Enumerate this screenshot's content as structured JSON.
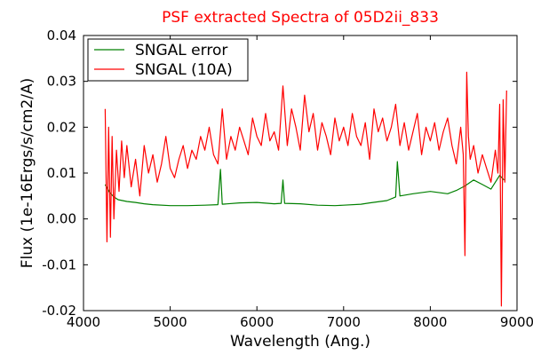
{
  "chart_data": {
    "type": "line",
    "title": "PSF extracted Spectra of 05D2ii_833",
    "xlabel": "Wavelength (Ang.)",
    "ylabel": "Flux (1e-16Ergs/s/cm2/A)",
    "xlim": [
      4000,
      9000
    ],
    "ylim": [
      -0.02,
      0.04
    ],
    "xticks": [
      4000,
      5000,
      6000,
      7000,
      8000,
      9000
    ],
    "xtick_labels": [
      "4000",
      "5000",
      "6000",
      "7000",
      "8000",
      "9000"
    ],
    "yticks": [
      -0.02,
      -0.01,
      0.0,
      0.01,
      0.02,
      0.03,
      0.04
    ],
    "ytick_labels": [
      "-0.02",
      "-0.01",
      "0.00",
      "0.01",
      "0.02",
      "0.03",
      "0.04"
    ],
    "grid": false,
    "legend_position": "top-left",
    "series": [
      {
        "name": "SNGAL error",
        "color": "#008000",
        "x": [
          4250,
          4300,
          4350,
          4400,
          4500,
          4600,
          4700,
          4800,
          5000,
          5200,
          5400,
          5550,
          5580,
          5600,
          5800,
          6000,
          6200,
          6280,
          6300,
          6320,
          6500,
          6700,
          6900,
          7000,
          7200,
          7300,
          7500,
          7600,
          7620,
          7650,
          7800,
          8000,
          8200,
          8300,
          8400,
          8500,
          8600,
          8700,
          8800,
          8850
        ],
        "values": [
          0.0075,
          0.0058,
          0.0048,
          0.0042,
          0.0038,
          0.0036,
          0.0033,
          0.0031,
          0.0029,
          0.0029,
          0.003,
          0.0031,
          0.0108,
          0.0032,
          0.0035,
          0.0036,
          0.0033,
          0.0034,
          0.0085,
          0.0034,
          0.0033,
          0.003,
          0.0029,
          0.003,
          0.0032,
          0.0035,
          0.004,
          0.0048,
          0.0125,
          0.005,
          0.0055,
          0.006,
          0.0055,
          0.0062,
          0.0072,
          0.0085,
          0.0075,
          0.0065,
          0.0095,
          0.0085
        ]
      },
      {
        "name": "SNGAL (10A)",
        "color": "#ff0000",
        "x": [
          4250,
          4270,
          4290,
          4310,
          4330,
          4350,
          4380,
          4410,
          4440,
          4470,
          4500,
          4550,
          4600,
          4650,
          4700,
          4750,
          4800,
          4850,
          4900,
          4950,
          5000,
          5050,
          5100,
          5150,
          5200,
          5250,
          5300,
          5350,
          5400,
          5450,
          5500,
          5550,
          5600,
          5650,
          5700,
          5750,
          5800,
          5850,
          5900,
          5950,
          6000,
          6050,
          6100,
          6150,
          6200,
          6250,
          6300,
          6350,
          6400,
          6450,
          6500,
          6550,
          6600,
          6650,
          6700,
          6750,
          6800,
          6850,
          6900,
          6950,
          7000,
          7050,
          7100,
          7150,
          7200,
          7250,
          7300,
          7350,
          7400,
          7450,
          7500,
          7550,
          7600,
          7650,
          7700,
          7750,
          7800,
          7850,
          7900,
          7950,
          8000,
          8050,
          8100,
          8150,
          8200,
          8250,
          8300,
          8350,
          8380,
          8400,
          8420,
          8440,
          8460,
          8500,
          8550,
          8600,
          8650,
          8700,
          8750,
          8780,
          8800,
          8820,
          8840,
          8860,
          8880
        ],
        "values": [
          0.024,
          -0.005,
          0.02,
          -0.004,
          0.018,
          0.0,
          0.015,
          0.006,
          0.017,
          0.009,
          0.016,
          0.007,
          0.013,
          0.005,
          0.016,
          0.01,
          0.014,
          0.008,
          0.012,
          0.018,
          0.011,
          0.009,
          0.013,
          0.016,
          0.011,
          0.015,
          0.013,
          0.018,
          0.015,
          0.02,
          0.014,
          0.012,
          0.024,
          0.013,
          0.018,
          0.015,
          0.02,
          0.017,
          0.014,
          0.022,
          0.018,
          0.016,
          0.023,
          0.017,
          0.019,
          0.015,
          0.029,
          0.016,
          0.024,
          0.02,
          0.015,
          0.027,
          0.019,
          0.023,
          0.015,
          0.021,
          0.018,
          0.014,
          0.022,
          0.017,
          0.02,
          0.016,
          0.023,
          0.018,
          0.016,
          0.021,
          0.013,
          0.024,
          0.019,
          0.022,
          0.017,
          0.02,
          0.025,
          0.016,
          0.021,
          0.015,
          0.019,
          0.023,
          0.014,
          0.02,
          0.017,
          0.021,
          0.015,
          0.019,
          0.022,
          0.016,
          0.012,
          0.02,
          0.014,
          -0.008,
          0.032,
          0.018,
          0.013,
          0.016,
          0.01,
          0.014,
          0.011,
          0.008,
          0.015,
          0.01,
          0.025,
          -0.019,
          0.026,
          0.008,
          0.028
        ]
      }
    ]
  }
}
